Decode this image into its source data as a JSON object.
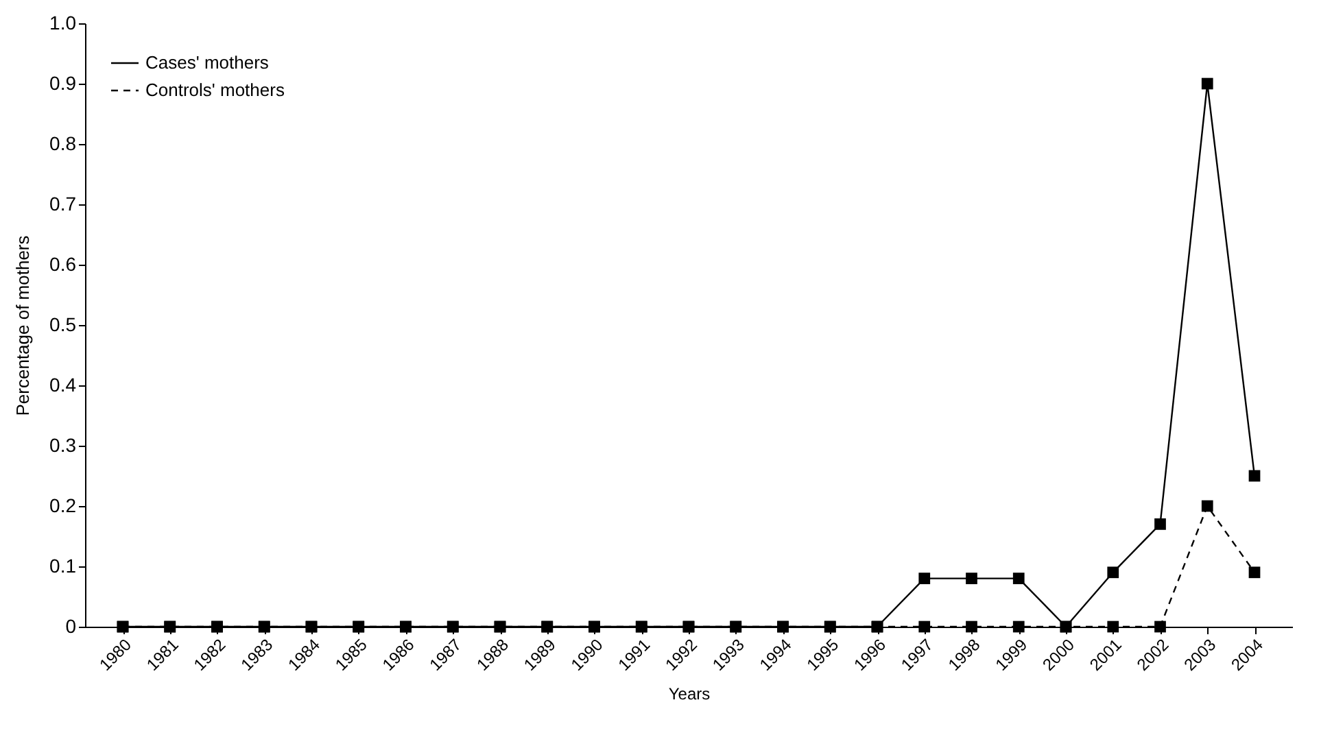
{
  "chart_data": {
    "type": "line",
    "xlabel": "Years",
    "ylabel": "Percentage of mothers",
    "categories": [
      "1980",
      "1981",
      "1982",
      "1983",
      "1984",
      "1985",
      "1986",
      "1987",
      "1988",
      "1989",
      "1990",
      "1991",
      "1992",
      "1993",
      "1994",
      "1995",
      "1996",
      "1997",
      "1998",
      "1999",
      "2000",
      "2001",
      "2002",
      "2003",
      "2004"
    ],
    "series": [
      {
        "name": "Cases' mothers",
        "color": "#000000",
        "line_style": "solid",
        "values": [
          0,
          0,
          0,
          0,
          0,
          0,
          0,
          0,
          0,
          0,
          0,
          0,
          0,
          0,
          0,
          0,
          0,
          0.08,
          0.08,
          0.08,
          0,
          0.09,
          0.17,
          0.9,
          0.25
        ]
      },
      {
        "name": "Controls' mothers",
        "color": "#000000",
        "line_style": "dashed",
        "values": [
          0,
          0,
          0,
          0,
          0,
          0,
          0,
          0,
          0,
          0,
          0,
          0,
          0,
          0,
          0,
          0,
          0,
          0,
          0,
          0,
          0,
          0,
          0,
          0.2,
          0.09
        ]
      }
    ],
    "ylim": [
      0,
      1
    ],
    "yticks": [
      {
        "value": 0,
        "label": "0"
      },
      0.1,
      0.2,
      0.3,
      0.4,
      0.5,
      0.6,
      0.7,
      0.8,
      0.9,
      {
        "value": 1,
        "label": "1.0"
      }
    ],
    "grid": false,
    "legend": "top left",
    "marker": "square"
  }
}
